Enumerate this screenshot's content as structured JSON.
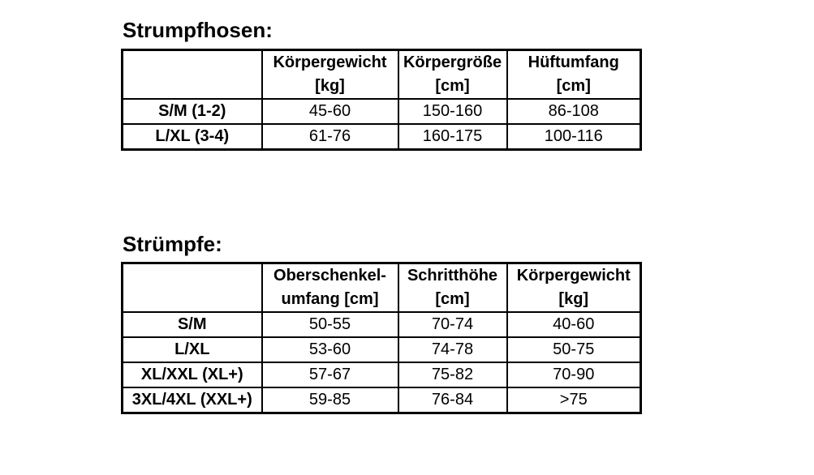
{
  "page": {
    "background_color": "#ffffff",
    "text_color": "#000000",
    "border_color": "#000000"
  },
  "tables": [
    {
      "title": "Strumpfhosen:",
      "columns": [
        {
          "line1": "Körpergewicht",
          "line2": "[kg]"
        },
        {
          "line1": "Körpergröße",
          "line2": "[cm]"
        },
        {
          "line1": "Hüftumfang",
          "line2": "[cm]"
        }
      ],
      "rows": [
        {
          "label": "S/M (1-2)",
          "values": [
            "45-60",
            "150-160",
            "86-108"
          ]
        },
        {
          "label": "L/XL (3-4)",
          "values": [
            "61-76",
            "160-175",
            "100-116"
          ]
        }
      ]
    },
    {
      "title": "Strümpfe:",
      "columns": [
        {
          "line1": "Oberschenkel-",
          "line2": "umfang [cm]"
        },
        {
          "line1": "Schritthöhe",
          "line2": "[cm]"
        },
        {
          "line1": "Körpergewicht",
          "line2": "[kg]"
        }
      ],
      "rows": [
        {
          "label": "S/M",
          "values": [
            "50-55",
            "70-74",
            "40-60"
          ]
        },
        {
          "label": "L/XL",
          "values": [
            "53-60",
            "74-78",
            "50-75"
          ]
        },
        {
          "label": "XL/XXL (XL+)",
          "values": [
            "57-67",
            "75-82",
            "70-90"
          ]
        },
        {
          "label": "3XL/4XL (XXL+)",
          "values": [
            "59-85",
            "76-84",
            "&gt;75"
          ]
        }
      ]
    }
  ]
}
